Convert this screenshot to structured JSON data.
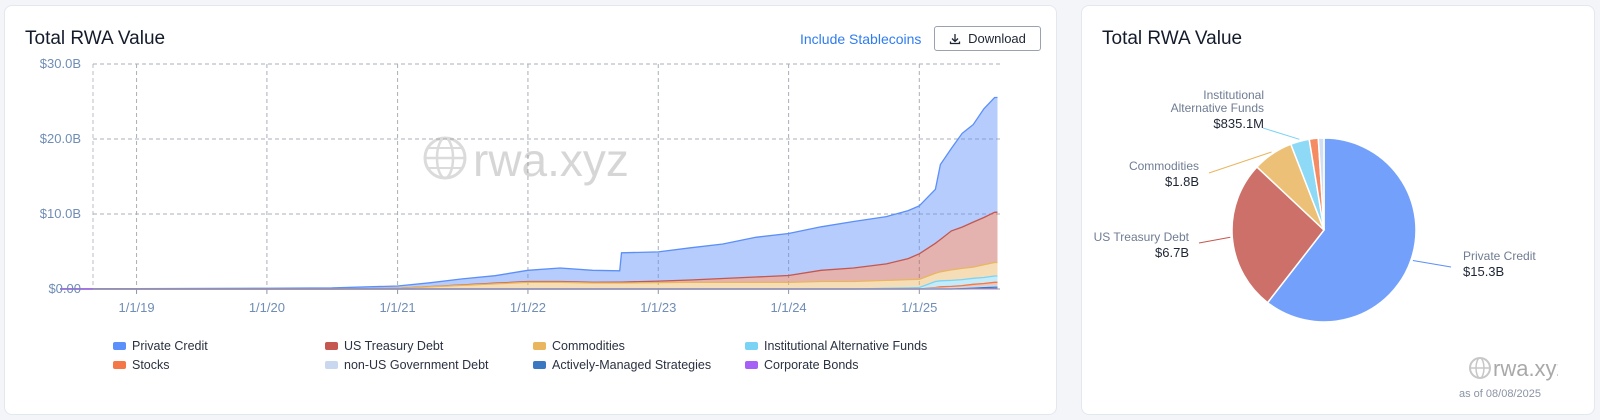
{
  "left_card": {
    "title": "Total RWA Value",
    "include_link": "Include Stablecoins",
    "download_label": "Download",
    "watermark": "rwa.xyz"
  },
  "right_card": {
    "title": "Total RWA Value",
    "watermark": "rwa.xyz",
    "as_of": "as of 08/08/2025"
  },
  "colors": {
    "private_credit": "#5b8ff9",
    "us_treasury": "#c4574f",
    "commodities": "#e9b65f",
    "institutional_alt": "#7ad3f5",
    "stocks": "#f37747",
    "non_us_gov": "#c9d8ee",
    "actively_managed": "#3a78c2",
    "corporate_bonds": "#a560f5"
  },
  "chart_data": [
    {
      "type": "area",
      "stacked": true,
      "title": "Total RWA Value",
      "x_ticks": [
        "1/1/19",
        "1/1/20",
        "1/1/21",
        "1/1/22",
        "1/1/23",
        "1/1/24",
        "1/1/25"
      ],
      "y_ticks": [
        "$0.00",
        "$10.0B",
        "$20.0B",
        "$30.0B"
      ],
      "ylim": [
        0,
        30
      ],
      "y_unit": "B",
      "grid": true,
      "legend_position": "bottom",
      "x": [
        "2018-06-01",
        "2019-01-01",
        "2020-01-01",
        "2020-07-01",
        "2021-01-01",
        "2021-04-01",
        "2021-07-01",
        "2021-10-01",
        "2022-01-01",
        "2022-04-01",
        "2022-07-01",
        "2022-09-15",
        "2022-09-20",
        "2023-01-01",
        "2023-04-01",
        "2023-07-01",
        "2023-10-01",
        "2024-01-01",
        "2024-04-01",
        "2024-07-01",
        "2024-10-01",
        "2024-12-01",
        "2025-01-01",
        "2025-02-15",
        "2025-03-01",
        "2025-04-01",
        "2025-05-01",
        "2025-06-01",
        "2025-07-01",
        "2025-07-31",
        "2025-08-08"
      ],
      "series": [
        {
          "name": "Private Credit",
          "color_key": "private_credit",
          "values": [
            0.05,
            0.05,
            0.1,
            0.15,
            0.3,
            0.5,
            0.8,
            1.0,
            1.5,
            1.8,
            1.6,
            1.5,
            3.9,
            3.9,
            4.3,
            4.6,
            5.3,
            5.6,
            5.8,
            6.2,
            6.3,
            6.4,
            6.4,
            7.2,
            10.0,
            11.0,
            12.5,
            13.0,
            14.5,
            15.3,
            15.3
          ]
        },
        {
          "name": "US Treasury Debt",
          "color_key": "us_treasury",
          "values": [
            0,
            0,
            0,
            0,
            0,
            0.02,
            0.05,
            0.08,
            0.1,
            0.1,
            0.1,
            0.12,
            0.12,
            0.2,
            0.3,
            0.5,
            0.7,
            0.9,
            1.5,
            1.8,
            2.2,
            2.8,
            3.4,
            4.0,
            4.3,
            5.2,
            5.5,
            6.0,
            6.3,
            6.7,
            6.7
          ]
        },
        {
          "name": "Commodities",
          "color_key": "commodities",
          "values": [
            0,
            0,
            0,
            0,
            0.1,
            0.3,
            0.5,
            0.7,
            0.9,
            0.9,
            0.8,
            0.8,
            0.8,
            0.85,
            0.9,
            0.9,
            0.9,
            0.9,
            1.0,
            1.0,
            1.05,
            1.1,
            1.1,
            1.1,
            1.2,
            1.4,
            1.5,
            1.5,
            1.7,
            1.8,
            1.8
          ]
        },
        {
          "name": "Institutional Alternative Funds",
          "color_key": "institutional_alt",
          "values": [
            0,
            0,
            0,
            0,
            0,
            0,
            0,
            0,
            0,
            0,
            0,
            0,
            0,
            0,
            0,
            0,
            0,
            0,
            0,
            0,
            0.1,
            0.15,
            0.2,
            0.8,
            0.8,
            0.8,
            0.8,
            0.8,
            0.8,
            0.83,
            0.835
          ]
        },
        {
          "name": "Stocks",
          "color_key": "stocks",
          "values": [
            0,
            0,
            0,
            0,
            0,
            0,
            0,
            0,
            0,
            0,
            0,
            0,
            0,
            0,
            0,
            0,
            0,
            0,
            0,
            0,
            0,
            0,
            0,
            0.1,
            0.2,
            0.2,
            0.25,
            0.3,
            0.35,
            0.4,
            0.4
          ]
        },
        {
          "name": "non-US Government Debt",
          "color_key": "non_us_gov",
          "values": [
            0,
            0,
            0,
            0,
            0,
            0,
            0,
            0,
            0,
            0,
            0,
            0,
            0,
            0,
            0,
            0,
            0,
            0,
            0,
            0,
            0,
            0,
            0,
            0.1,
            0.1,
            0.15,
            0.15,
            0.2,
            0.2,
            0.25,
            0.25
          ]
        },
        {
          "name": "Actively-Managed Strategies",
          "color_key": "actively_managed",
          "values": [
            0,
            0,
            0,
            0,
            0,
            0,
            0,
            0,
            0,
            0,
            0,
            0,
            0,
            0,
            0,
            0,
            0,
            0,
            0,
            0,
            0,
            0,
            0,
            0,
            0,
            0,
            0.05,
            0.1,
            0.15,
            0.2,
            0.2
          ]
        },
        {
          "name": "Corporate Bonds",
          "color_key": "corporate_bonds",
          "values": [
            0,
            0,
            0,
            0,
            0,
            0,
            0,
            0,
            0,
            0,
            0,
            0,
            0,
            0,
            0,
            0,
            0,
            0,
            0,
            0,
            0,
            0,
            0,
            0,
            0,
            0,
            0,
            0.02,
            0.03,
            0.05,
            0.05
          ]
        }
      ]
    },
    {
      "type": "pie",
      "title": "Total RWA Value",
      "slices": [
        {
          "label": "Private Credit",
          "display_value": "$15.3B",
          "value": 15.3,
          "color_key": "private_credit"
        },
        {
          "label": "US Treasury Debt",
          "display_value": "$6.7B",
          "value": 6.7,
          "color_key": "us_treasury"
        },
        {
          "label": "Commodities",
          "display_value": "$1.8B",
          "value": 1.8,
          "color_key": "commodities"
        },
        {
          "label": "Institutional Alternative Funds",
          "display_value": "$835.1M",
          "value": 0.8351,
          "color_key": "institutional_alt"
        },
        {
          "label": "Stocks",
          "display_value": "",
          "value": 0.4,
          "color_key": "stocks"
        },
        {
          "label": "non-US Government Debt",
          "display_value": "",
          "value": 0.25,
          "color_key": "non_us_gov"
        }
      ]
    }
  ]
}
